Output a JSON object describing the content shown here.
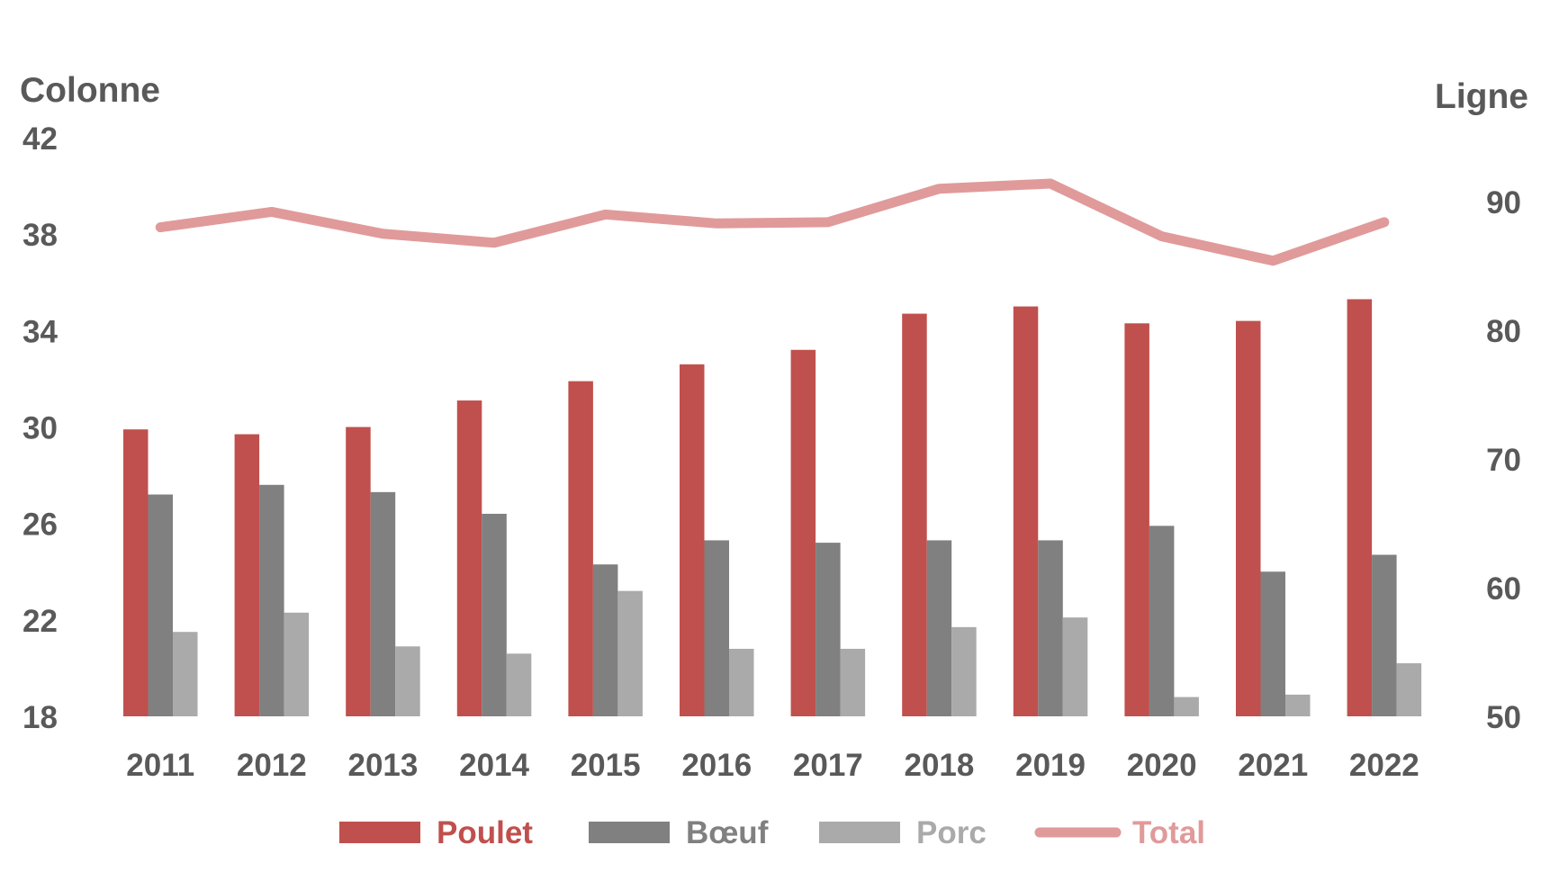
{
  "chart_data": {
    "type": "bar+line",
    "categories": [
      "2011",
      "2012",
      "2013",
      "2014",
      "2015",
      "2016",
      "2017",
      "2018",
      "2019",
      "2020",
      "2021",
      "2022"
    ],
    "left_axis": {
      "title": "Colonne",
      "min": 18,
      "max": 42,
      "ticks": [
        18,
        22,
        26,
        30,
        34,
        38,
        42
      ]
    },
    "right_axis": {
      "title": "Ligne",
      "min": 50,
      "max": 95,
      "ticks": [
        50,
        60,
        70,
        80,
        90
      ]
    },
    "series": [
      {
        "name": "Poulet",
        "type": "bar",
        "axis": "left",
        "color": "#C0504D",
        "values": [
          29.9,
          29.7,
          30.0,
          31.1,
          31.9,
          32.6,
          33.2,
          34.7,
          35.0,
          34.3,
          34.4,
          35.3
        ]
      },
      {
        "name": "Bœuf",
        "type": "bar",
        "axis": "left",
        "color": "#808080",
        "values": [
          27.2,
          27.6,
          27.3,
          26.4,
          24.3,
          25.3,
          25.2,
          25.3,
          25.3,
          25.9,
          24.0,
          24.7
        ]
      },
      {
        "name": "Porc",
        "type": "bar",
        "axis": "left",
        "color": "#AAAAAA",
        "values": [
          21.5,
          22.3,
          20.9,
          20.6,
          23.2,
          20.8,
          20.8,
          21.7,
          22.1,
          18.8,
          18.9,
          20.2
        ]
      },
      {
        "name": "Total",
        "type": "line",
        "axis": "right",
        "color": "#E09A9A",
        "values": [
          88.0,
          89.2,
          87.5,
          86.8,
          89.0,
          88.3,
          88.4,
          91.0,
          91.4,
          87.3,
          85.4,
          88.4
        ]
      }
    ],
    "legend_position": "bottom",
    "grid": false
  }
}
